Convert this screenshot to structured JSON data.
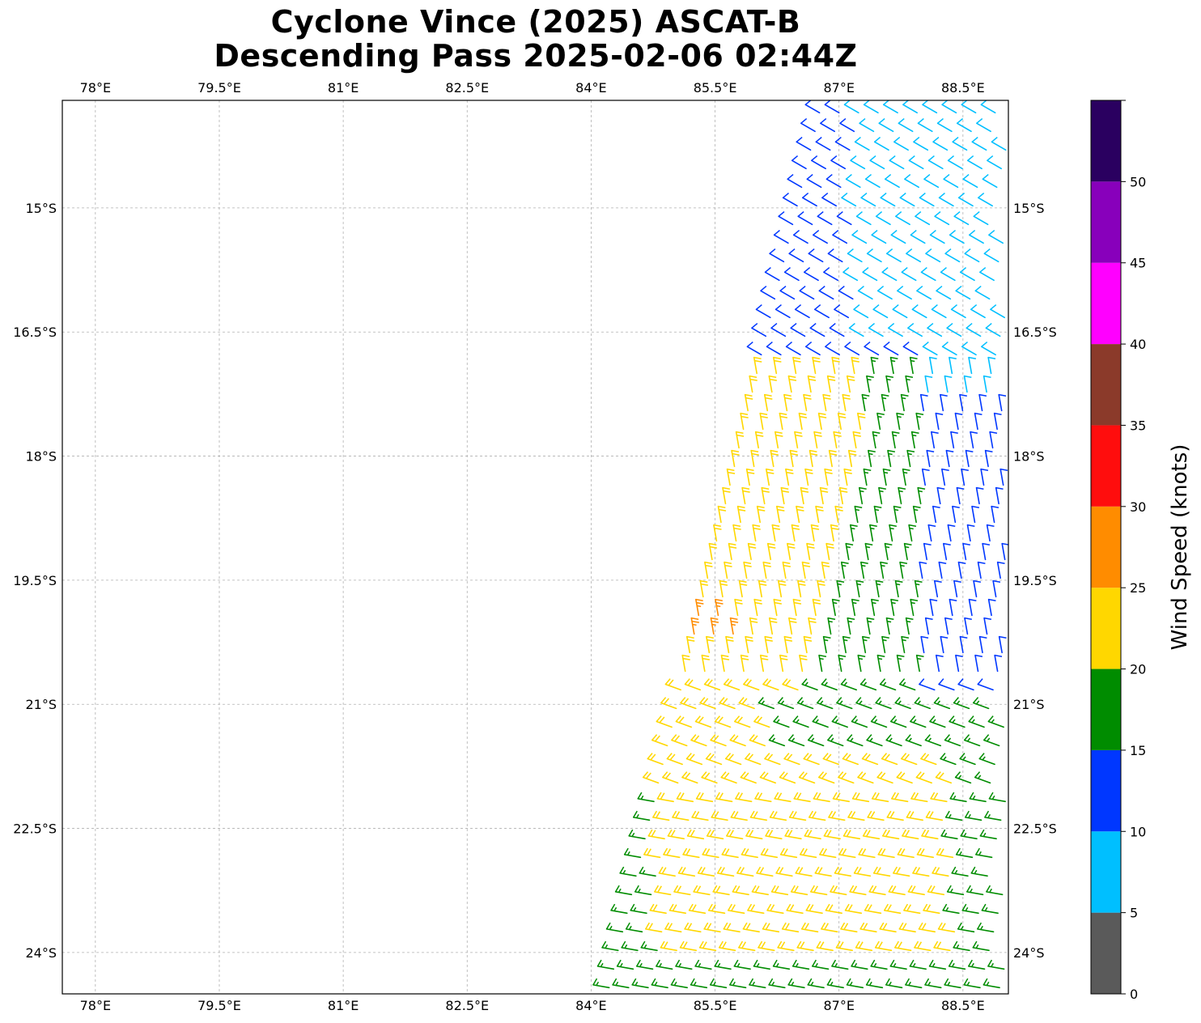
{
  "chart_data": {
    "type": "wind-barb-map",
    "title": "Cyclone Vince (2025) ASCAT-B",
    "subtitle": "Descending Pass 2025-02-06 02:44Z",
    "x_axis": {
      "range_deg_east": [
        77.6,
        89.05
      ],
      "ticks": [
        78,
        79.5,
        81,
        82.5,
        84,
        85.5,
        87,
        88.5
      ],
      "tick_labels": [
        "78°E",
        "79.5°E",
        "81°E",
        "82.5°E",
        "84°E",
        "85.5°E",
        "87°E",
        "88.5°E"
      ]
    },
    "y_axis": {
      "range_deg_south": [
        13.7,
        24.5
      ],
      "ticks": [
        15,
        16.5,
        18,
        19.5,
        21,
        22.5,
        24
      ],
      "tick_labels": [
        "15°S",
        "16.5°S",
        "18°S",
        "19.5°S",
        "21°S",
        "22.5°S",
        "24°S"
      ]
    },
    "grid": true,
    "colorbar": {
      "label": "Wind Speed (knots)",
      "bounds": [
        0,
        5,
        10,
        15,
        20,
        25,
        30,
        35,
        40,
        45,
        50,
        55
      ],
      "tick_values": [
        0,
        5,
        10,
        15,
        20,
        25,
        30,
        35,
        40,
        45,
        50
      ],
      "tick_labels": [
        "0",
        "5",
        "10",
        "15",
        "20",
        "25",
        "30",
        "35",
        "40",
        "45",
        "50"
      ],
      "colors": [
        "#5a5a5a",
        "#00bfff",
        "#0037ff",
        "#008c00",
        "#ffd700",
        "#ff8c00",
        "#ff0d0d",
        "#8b3a2a",
        "#ff00ff",
        "#8800bb",
        "#2a0060"
      ]
    },
    "swath": {
      "lon_range_at_north": [
        86.8,
        89.05
      ],
      "lon_range_at_south": [
        84.2,
        89.05
      ],
      "lat_range_south": [
        13.7,
        24.5
      ]
    },
    "wind_regions": [
      {
        "area": "north-east swath 13.7–17.5°S, east of ~87.2°E",
        "speed_kt_range": [
          5,
          10
        ],
        "class": "light"
      },
      {
        "area": "north-west swath 15.0–17.0°S and eastern band 16.5–19.8°S",
        "speed_kt_range": [
          10,
          15
        ],
        "class": "moderate"
      },
      {
        "area": "central swath 16.6–21°S near 86–87.5°E and southern band",
        "speed_kt_range": [
          15,
          20
        ],
        "class": "fresh"
      },
      {
        "area": "western swath 17.5–21.5°S and 22–24°S",
        "speed_kt_range": [
          20,
          25
        ],
        "class": "strong"
      },
      {
        "area": "near 85.6°E, 19.8–20.3°S",
        "speed_kt_range": [
          25,
          30
        ],
        "class": "near gale"
      }
    ]
  }
}
